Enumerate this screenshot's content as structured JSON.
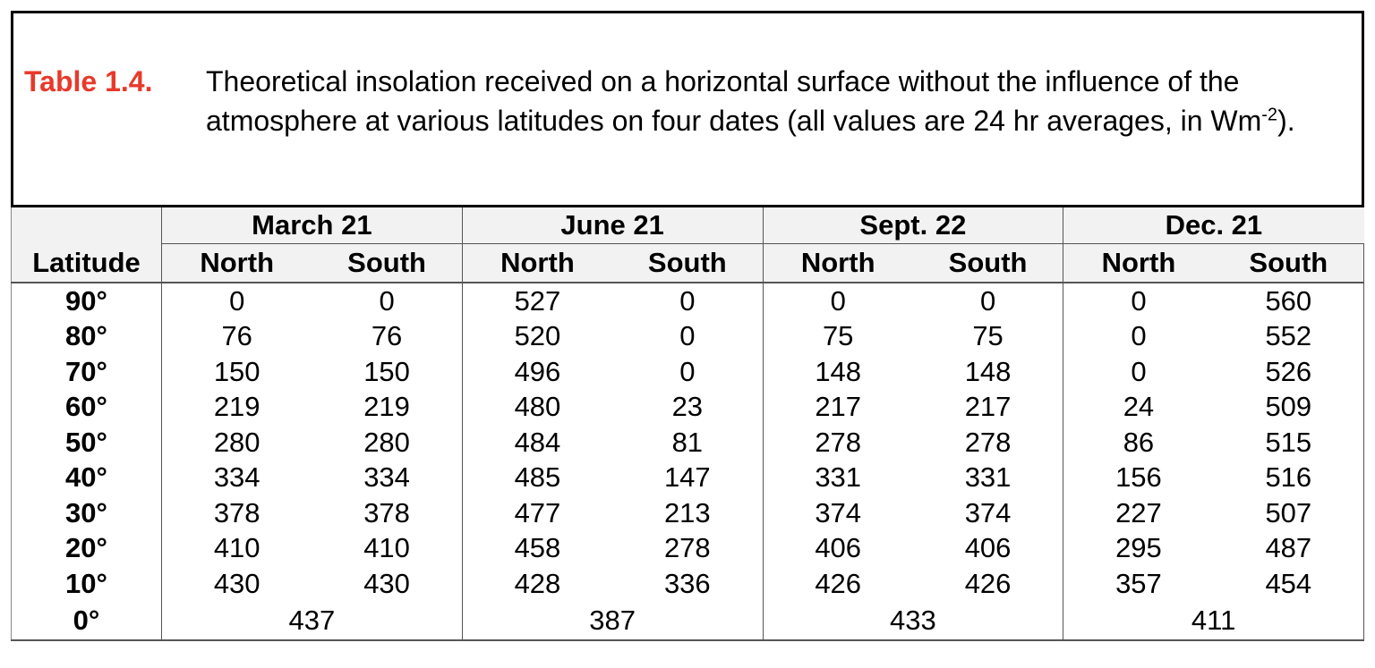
{
  "caption": {
    "label": "Table 1.4.",
    "text_before": "Theoretical insolation received on a horizontal surface without the influence of the atmosphere at various latitudes on four dates (all values are 24 hr averages, in Wm",
    "unit_exponent": "-2",
    "text_after": ")."
  },
  "table": {
    "dates": [
      "March 21",
      "June 21",
      "Sept. 22",
      "Dec. 21"
    ],
    "latitude_header": "Latitude",
    "sub_headers": [
      "North",
      "South",
      "North",
      "South",
      "North",
      "South",
      "North",
      "South"
    ],
    "rows": [
      {
        "latitude": "90°",
        "values": [
          0,
          0,
          527,
          0,
          0,
          0,
          0,
          560
        ]
      },
      {
        "latitude": "80°",
        "values": [
          76,
          76,
          520,
          0,
          75,
          75,
          0,
          552
        ]
      },
      {
        "latitude": "70°",
        "values": [
          150,
          150,
          496,
          0,
          148,
          148,
          0,
          526
        ]
      },
      {
        "latitude": "60°",
        "values": [
          219,
          219,
          480,
          23,
          217,
          217,
          24,
          509
        ]
      },
      {
        "latitude": "50°",
        "values": [
          280,
          280,
          484,
          81,
          278,
          278,
          86,
          515
        ]
      },
      {
        "latitude": "40°",
        "values": [
          334,
          334,
          485,
          147,
          331,
          331,
          156,
          516
        ]
      },
      {
        "latitude": "30°",
        "values": [
          378,
          378,
          477,
          213,
          374,
          374,
          227,
          507
        ]
      },
      {
        "latitude": "20°",
        "values": [
          410,
          410,
          458,
          278,
          406,
          406,
          295,
          487
        ]
      },
      {
        "latitude": "10°",
        "values": [
          430,
          430,
          428,
          336,
          426,
          426,
          357,
          454
        ]
      },
      {
        "latitude": "0°",
        "values": [
          437,
          387,
          433,
          411
        ]
      }
    ]
  }
}
